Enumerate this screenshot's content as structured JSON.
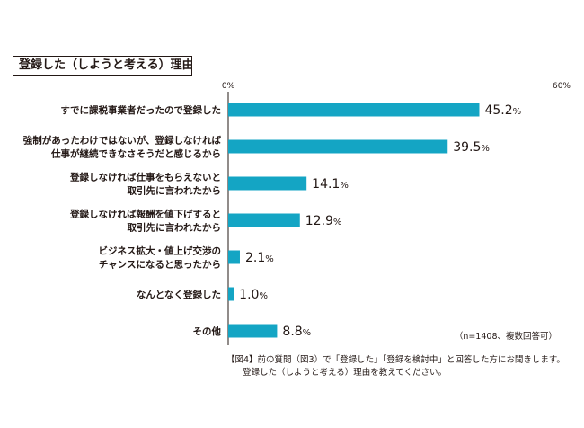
{
  "title": "登録した（しようと考える）理由",
  "chart_data": {
    "type": "bar",
    "orientation": "horizontal",
    "categories": [
      [
        "すでに課税事業者だったので登録した"
      ],
      [
        "強制があったわけではないが、登録しなければ",
        "仕事が継続できなさそうだと感じるから"
      ],
      [
        "登録しなければ仕事をもらえないと",
        "取引先に言われたから"
      ],
      [
        "登録しなければ報酬を値下げすると",
        "取引先に言われたから"
      ],
      [
        "ビジネス拡大・値上げ交渉の",
        "チャンスになると思ったから"
      ],
      [
        "なんとなく登録した"
      ],
      [
        "その他"
      ]
    ],
    "values": [
      45.2,
      39.5,
      14.1,
      12.9,
      2.1,
      1.0,
      8.8
    ],
    "value_suffix": "%",
    "xlim": [
      0,
      60
    ],
    "tick_labels": [
      "0%",
      "60%"
    ],
    "bar_color": "#14a5c4",
    "axis_color": "#231815"
  },
  "note": "（n=1408、複数回答可）",
  "caption": {
    "line1": "【図4】前の質問（図3）で「登録した」「登録を検討中」と回答した方にお聞きします。",
    "line2": "登録した（しようと考える）理由を教えてください。"
  }
}
